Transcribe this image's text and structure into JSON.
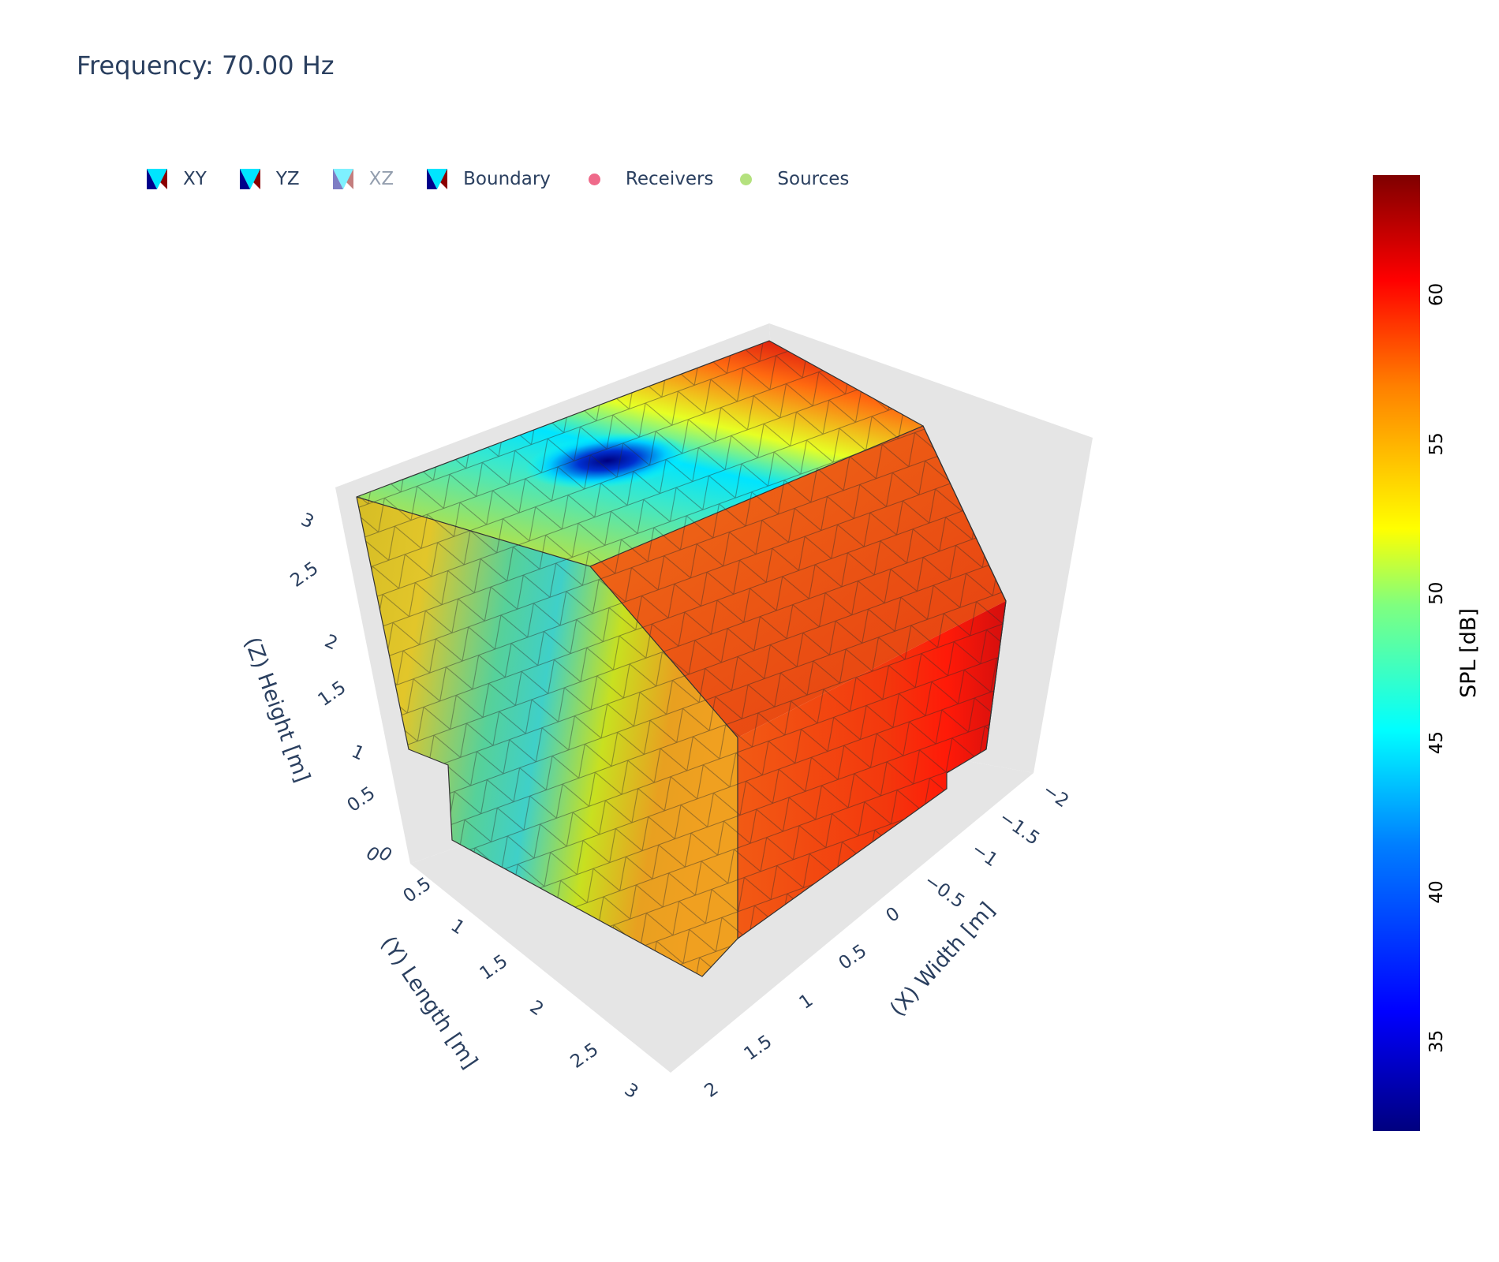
{
  "title": "Frequency: 70.00 Hz",
  "legend": [
    {
      "label": "XY",
      "kind": "mesh",
      "visible": true
    },
    {
      "label": "YZ",
      "kind": "mesh",
      "visible": true
    },
    {
      "label": "XZ",
      "kind": "mesh",
      "visible": false
    },
    {
      "label": "Boundary",
      "kind": "mesh",
      "visible": true
    },
    {
      "label": "Receivers",
      "kind": "marker",
      "color": "#ef6a8a",
      "visible": true
    },
    {
      "label": "Sources",
      "kind": "marker",
      "color": "#b4e17e",
      "visible": true
    }
  ],
  "chart_data": {
    "type": "mesh3d",
    "title": "Frequency: 70.00 Hz",
    "axes": {
      "x": {
        "label": "(X) Width [m]",
        "ticks": [
          "−2",
          "−1.5",
          "−1",
          "−0.5",
          "0",
          "0.5",
          "1",
          "1.5",
          "2"
        ],
        "range": [
          -2,
          2
        ]
      },
      "y": {
        "label": "(Y) Length [m]",
        "ticks": [
          "0",
          "0.5",
          "1",
          "1.5",
          "2",
          "2.5",
          "3"
        ],
        "range": [
          0,
          3
        ]
      },
      "z": {
        "label": "(Z) Height [m]",
        "ticks": [
          "0",
          "0.5",
          "1",
          "1.5",
          "2",
          "2.5",
          "3"
        ],
        "range": [
          0,
          3
        ]
      }
    },
    "colorbar": {
      "title": "SPL [dB]",
      "ticks": [
        35,
        40,
        45,
        50,
        55,
        60
      ],
      "range": [
        32,
        64
      ],
      "colorscale": [
        "#00007f",
        "#0000ff",
        "#007fff",
        "#00ffff",
        "#7fff7f",
        "#ffff00",
        "#ff7f00",
        "#ff0000",
        "#7f0000"
      ]
    },
    "surface_spl": {
      "min_dB": 32,
      "max_dB": 62,
      "top_face": "low minimum (~32 dB) near center of top face, rising to ~60 dB toward far edge",
      "front_face": "~48 dB band through middle, ~54 dB at edges",
      "right_face": "~57 dB with ~61 dB band near right edge"
    },
    "grid": true
  }
}
